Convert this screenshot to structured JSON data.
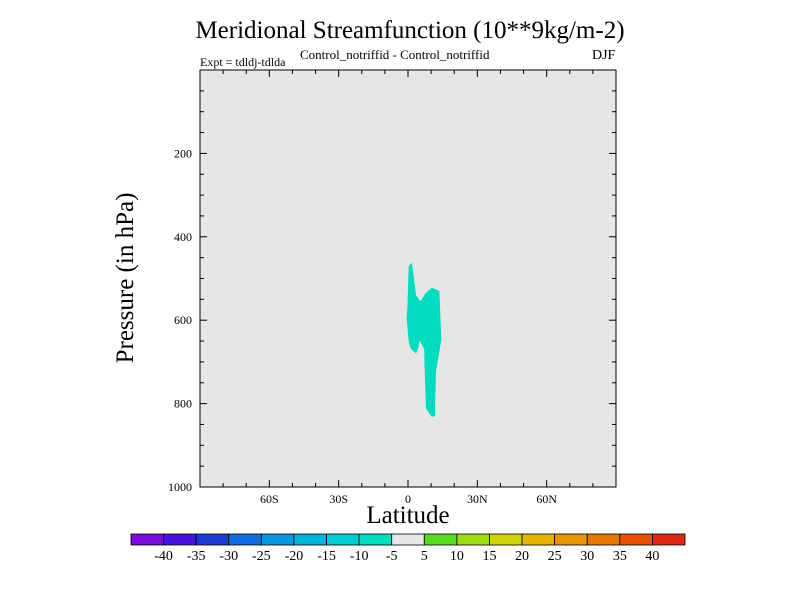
{
  "chart_data": {
    "type": "contour",
    "title": "Meridional Streamfunction (10**9kg/m-2)",
    "subtitle": "Control_notriffid - Control_notriffid",
    "experiment": "Expt = tdldj-tdlda",
    "season": "DJF",
    "xlabel": "Latitude",
    "ylabel": "Pressure (in hPa)",
    "xlim": [
      -90,
      90
    ],
    "ylim": [
      0,
      1000
    ],
    "y_inverted": true,
    "x_ticks": [
      {
        "value": -60,
        "label": "60S"
      },
      {
        "value": -30,
        "label": "30S"
      },
      {
        "value": 0,
        "label": "0"
      },
      {
        "value": 30,
        "label": "30N"
      },
      {
        "value": 60,
        "label": "60N"
      }
    ],
    "y_ticks": [
      {
        "value": 200,
        "label": "200"
      },
      {
        "value": 400,
        "label": "400"
      },
      {
        "value": 600,
        "label": "600"
      },
      {
        "value": 800,
        "label": "800"
      },
      {
        "value": 1000,
        "label": "1000"
      }
    ],
    "background_color": "#e6e6e6",
    "regions": [
      {
        "name": "streamfunction-negative-region",
        "level_range": [
          -10,
          -5
        ],
        "color": "#00dcbe",
        "outline": [
          [
            0.3,
            470
          ],
          [
            1.7,
            462
          ],
          [
            3.5,
            540
          ],
          [
            5.5,
            555
          ],
          [
            7.6,
            535
          ],
          [
            10.4,
            522
          ],
          [
            13.6,
            530
          ],
          [
            14.4,
            648
          ],
          [
            12.1,
            723
          ],
          [
            11.6,
            830
          ],
          [
            10.3,
            832
          ],
          [
            7.8,
            812
          ],
          [
            7.2,
            715
          ],
          [
            7.0,
            670
          ],
          [
            5.0,
            648
          ],
          [
            4.5,
            665
          ],
          [
            3.5,
            680
          ],
          [
            1.0,
            667
          ],
          [
            0.3,
            650
          ],
          [
            -0.6,
            596
          ],
          [
            -0.2,
            565
          ],
          [
            -0.1,
            535
          ]
        ]
      }
    ],
    "colorbar": {
      "levels": [
        -40,
        -35,
        -30,
        -25,
        -20,
        -15,
        -10,
        -5,
        5,
        10,
        15,
        20,
        25,
        30,
        35,
        40
      ],
      "colors": [
        "#7b0fdc",
        "#4614dc",
        "#1e3cd2",
        "#0f6ee1",
        "#0a96e1",
        "#00b4dc",
        "#00ccd2",
        "#00dcbe",
        "#e6e6e6",
        "#5adc1e",
        "#a0dc14",
        "#d2d20a",
        "#e6b400",
        "#e69600",
        "#e67800",
        "#e65000",
        "#dc2814"
      ]
    }
  }
}
